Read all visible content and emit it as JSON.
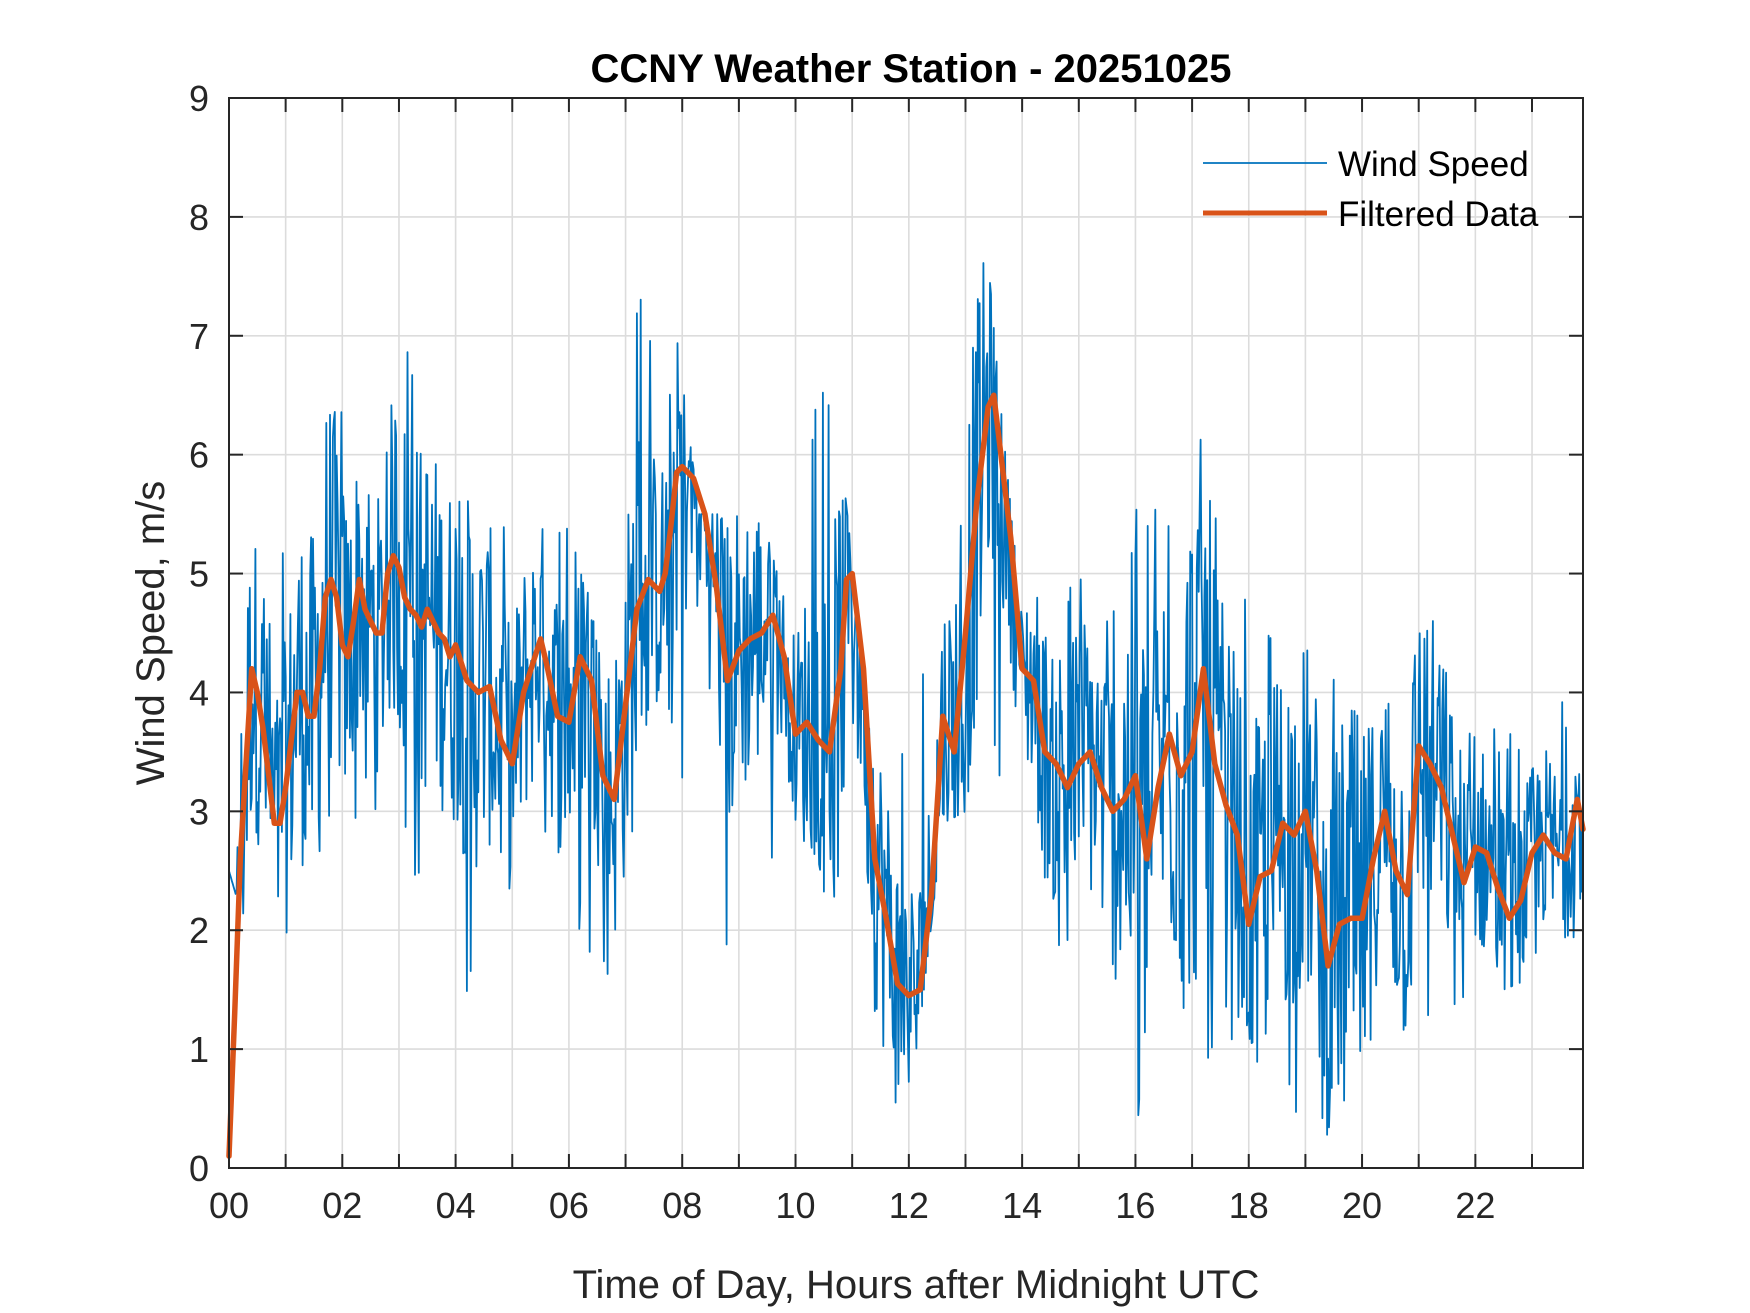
{
  "chart_data": {
    "type": "line",
    "title": "CCNY Weather Station - 20251025",
    "xlabel": "Time of Day, Hours after Midnight UTC",
    "ylabel": "Wind Speed, m/s",
    "xlim": [
      0,
      23.9
    ],
    "ylim": [
      0,
      9
    ],
    "grid": true,
    "x_ticks": [
      0,
      2,
      4,
      6,
      8,
      10,
      12,
      14,
      16,
      18,
      20,
      22
    ],
    "x_tick_labels": [
      "00",
      "02",
      "04",
      "06",
      "08",
      "10",
      "12",
      "14",
      "16",
      "18",
      "20",
      "22"
    ],
    "x_minor_gridlines_every_hours": 1,
    "y_ticks": [
      0,
      1,
      2,
      3,
      4,
      5,
      6,
      7,
      8,
      9
    ],
    "y_tick_labels": [
      "0",
      "1",
      "2",
      "3",
      "4",
      "5",
      "6",
      "7",
      "8",
      "9"
    ],
    "legend": {
      "placement": "top-right",
      "entries": [
        "Wind Speed",
        "Filtered Data"
      ]
    },
    "series": [
      {
        "name": "Wind Speed",
        "color": "#0072BD",
        "style": "thin-line",
        "note": "high-frequency raw samples, approx. one per minute; generated from envelope below",
        "envelope_points": {
          "x": [
            0.0,
            0.3,
            0.7,
            1.2,
            1.7,
            2.2,
            2.7,
            3.1,
            3.7,
            4.3,
            4.8,
            5.5,
            6.1,
            6.6,
            7.2,
            7.6,
            7.9,
            8.3,
            8.8,
            9.4,
            9.9,
            10.4,
            10.8,
            11.3,
            11.7,
            12.1,
            12.6,
            13.0,
            13.3,
            13.6,
            14.0,
            14.5,
            15.0,
            15.5,
            16.0,
            16.5,
            17.0,
            17.5,
            18.0,
            18.5,
            19.0,
            19.4,
            19.8,
            20.3,
            20.9,
            21.5,
            22.0,
            22.5,
            23.0,
            23.5,
            23.9
          ],
          "max": [
            4.5,
            5.8,
            4.8,
            5.8,
            7.3,
            6.1,
            6.1,
            7.0,
            6.0,
            5.6,
            5.5,
            5.7,
            5.4,
            4.2,
            7.5,
            6.6,
            7.0,
            5.5,
            5.5,
            5.5,
            4.6,
            6.9,
            6.0,
            3.8,
            3.7,
            3.5,
            5.7,
            8.2,
            8.2,
            6.5,
            4.6,
            5.0,
            5.0,
            4.8,
            5.8,
            5.5,
            6.4,
            5.5,
            4.7,
            4.8,
            4.4,
            4.0,
            5.6,
            4.0,
            4.9,
            4.5,
            3.8,
            3.8,
            3.6,
            4.0,
            3.5
          ],
          "min": [
            2.5,
            2.0,
            1.9,
            2.0,
            2.8,
            2.8,
            3.0,
            2.6,
            2.1,
            1.3,
            2.2,
            2.9,
            2.0,
            1.4,
            3.0,
            4.0,
            3.2,
            2.5,
            1.8,
            2.4,
            2.9,
            2.6,
            1.5,
            0.3,
            0.5,
            0.8,
            2.9,
            3.0,
            4.0,
            3.0,
            2.4,
            1.9,
            1.6,
            1.5,
            0.3,
            1.0,
            0.1,
            1.2,
            0.9,
            0.6,
            0.4,
            0.0,
            0.5,
            1.1,
            1.0,
            1.3,
            1.4,
            1.5,
            1.6,
            1.8,
            2.0
          ]
        }
      },
      {
        "name": "Filtered Data",
        "color": "#D95319",
        "style": "thick-line",
        "x": [
          0.0,
          0.1,
          0.2,
          0.3,
          0.4,
          0.5,
          0.6,
          0.7,
          0.8,
          0.9,
          1.0,
          1.1,
          1.2,
          1.3,
          1.4,
          1.5,
          1.6,
          1.7,
          1.8,
          1.9,
          2.0,
          2.1,
          2.2,
          2.3,
          2.4,
          2.5,
          2.6,
          2.7,
          2.8,
          2.9,
          3.0,
          3.1,
          3.2,
          3.3,
          3.4,
          3.5,
          3.6,
          3.7,
          3.8,
          3.9,
          4.0,
          4.2,
          4.4,
          4.6,
          4.8,
          5.0,
          5.2,
          5.4,
          5.5,
          5.6,
          5.8,
          6.0,
          6.2,
          6.4,
          6.6,
          6.8,
          7.0,
          7.2,
          7.4,
          7.6,
          7.7,
          7.8,
          7.9,
          8.0,
          8.2,
          8.4,
          8.6,
          8.8,
          9.0,
          9.2,
          9.4,
          9.6,
          9.8,
          10.0,
          10.2,
          10.4,
          10.6,
          10.8,
          10.9,
          11.0,
          11.2,
          11.4,
          11.6,
          11.8,
          12.0,
          12.2,
          12.4,
          12.6,
          12.8,
          13.0,
          13.2,
          13.4,
          13.5,
          13.6,
          13.8,
          14.0,
          14.2,
          14.4,
          14.6,
          14.8,
          15.0,
          15.2,
          15.4,
          15.6,
          15.8,
          16.0,
          16.2,
          16.4,
          16.6,
          16.8,
          17.0,
          17.2,
          17.4,
          17.6,
          17.8,
          18.0,
          18.2,
          18.4,
          18.6,
          18.8,
          19.0,
          19.2,
          19.4,
          19.6,
          19.8,
          20.0,
          20.2,
          20.4,
          20.6,
          20.8,
          21.0,
          21.2,
          21.4,
          21.6,
          21.8,
          22.0,
          22.2,
          22.4,
          22.6,
          22.8,
          23.0,
          23.2,
          23.4,
          23.6,
          23.8,
          23.9
        ],
        "y": [
          0.1,
          1.3,
          2.6,
          3.4,
          4.2,
          4.0,
          3.7,
          3.3,
          2.9,
          2.9,
          3.2,
          3.6,
          4.0,
          4.0,
          3.8,
          3.8,
          4.2,
          4.8,
          4.95,
          4.8,
          4.4,
          4.3,
          4.6,
          4.95,
          4.7,
          4.6,
          4.5,
          4.5,
          5.0,
          5.15,
          5.05,
          4.8,
          4.7,
          4.65,
          4.55,
          4.7,
          4.6,
          4.5,
          4.45,
          4.3,
          4.4,
          4.1,
          4.0,
          4.05,
          3.6,
          3.4,
          4.0,
          4.3,
          4.45,
          4.25,
          3.8,
          3.75,
          4.3,
          4.1,
          3.3,
          3.1,
          3.9,
          4.7,
          4.95,
          4.85,
          5.0,
          5.4,
          5.85,
          5.9,
          5.8,
          5.5,
          4.9,
          4.1,
          4.35,
          4.45,
          4.5,
          4.65,
          4.3,
          3.65,
          3.75,
          3.6,
          3.5,
          4.2,
          4.95,
          5.0,
          4.2,
          2.6,
          2.1,
          1.55,
          1.45,
          1.5,
          2.3,
          3.8,
          3.5,
          4.5,
          5.6,
          6.4,
          6.5,
          6.1,
          5.3,
          4.2,
          4.1,
          3.5,
          3.4,
          3.2,
          3.4,
          3.5,
          3.2,
          3.0,
          3.1,
          3.3,
          2.6,
          3.2,
          3.65,
          3.3,
          3.5,
          4.2,
          3.4,
          3.05,
          2.8,
          2.05,
          2.45,
          2.5,
          2.9,
          2.8,
          3.0,
          2.5,
          1.7,
          2.05,
          2.1,
          2.1,
          2.6,
          3.0,
          2.5,
          2.3,
          3.55,
          3.4,
          3.2,
          2.8,
          2.4,
          2.7,
          2.65,
          2.35,
          2.1,
          2.25,
          2.65,
          2.8,
          2.65,
          2.6,
          3.1,
          2.85
        ]
      }
    ]
  }
}
